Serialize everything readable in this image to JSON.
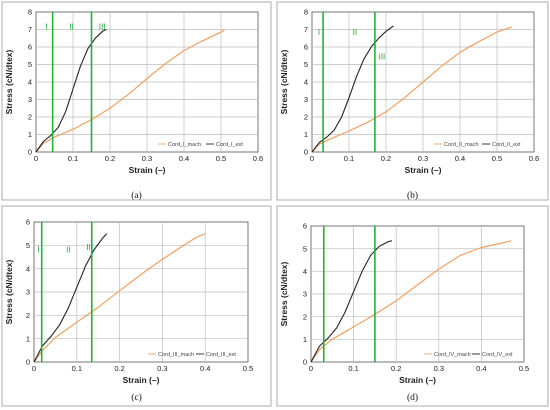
{
  "colors": {
    "mach": "#f0a060",
    "ext": "#222222",
    "boundary": "#22b03a",
    "grid": "#bdbdbd",
    "region_text": "#22aa33"
  },
  "chart_data": [
    {
      "type": "line",
      "panel_label": "(a)",
      "xlabel": "Strain (–)",
      "ylabel": "Stress (cN/dtex)",
      "xlim": [
        0,
        0.6
      ],
      "ylim": [
        0,
        8
      ],
      "x_ticks": [
        "0",
        "0.1",
        "0.2",
        "0.3",
        "0.4",
        "0.5",
        "0.6"
      ],
      "y_ticks": [
        "0",
        "1",
        "2",
        "3",
        "4",
        "5",
        "6",
        "7",
        "8"
      ],
      "grid": true,
      "legend_position": "bottom-right",
      "series": [
        {
          "name": "Cord_I_mach",
          "color_key": "mach",
          "x": [
            0,
            0.02,
            0.05,
            0.1,
            0.15,
            0.2,
            0.25,
            0.3,
            0.35,
            0.4,
            0.45,
            0.5,
            0.51
          ],
          "y": [
            0,
            0.5,
            0.85,
            1.3,
            1.85,
            2.5,
            3.3,
            4.2,
            5.05,
            5.8,
            6.35,
            6.85,
            7.0
          ]
        },
        {
          "name": "Cord_I_ext",
          "color_key": "ext",
          "x": [
            0,
            0.02,
            0.04,
            0.06,
            0.08,
            0.1,
            0.12,
            0.14,
            0.16,
            0.18,
            0.19
          ],
          "y": [
            0,
            0.6,
            0.95,
            1.4,
            2.3,
            3.6,
            4.9,
            5.9,
            6.5,
            6.9,
            7.0
          ]
        }
      ],
      "vlines": [
        0.045,
        0.15
      ],
      "regions": [
        {
          "label": "I",
          "x": 0.025,
          "y": 7.0
        },
        {
          "label": "II",
          "x": 0.09,
          "y": 7.0
        },
        {
          "label": "III",
          "x": 0.17,
          "y": 7.0
        }
      ]
    },
    {
      "type": "line",
      "panel_label": "(b)",
      "xlabel": "Strain (–)",
      "ylabel": "Stress (cN/dtex)",
      "xlim": [
        0,
        0.6
      ],
      "ylim": [
        0,
        8
      ],
      "x_ticks": [
        "0",
        "0.1",
        "0.2",
        "0.3",
        "0.4",
        "0.5",
        "0.6"
      ],
      "y_ticks": [
        "0",
        "1",
        "2",
        "3",
        "4",
        "5",
        "6",
        "7",
        "8"
      ],
      "grid": true,
      "legend_position": "bottom-right",
      "series": [
        {
          "name": "Cord_II_mach",
          "color_key": "mach",
          "x": [
            0,
            0.02,
            0.05,
            0.1,
            0.15,
            0.2,
            0.25,
            0.3,
            0.35,
            0.4,
            0.45,
            0.5,
            0.54
          ],
          "y": [
            0,
            0.45,
            0.75,
            1.2,
            1.7,
            2.3,
            3.1,
            4.0,
            4.9,
            5.7,
            6.3,
            6.85,
            7.15
          ]
        },
        {
          "name": "Cord_II_ext",
          "color_key": "ext",
          "x": [
            0,
            0.02,
            0.04,
            0.06,
            0.08,
            0.1,
            0.12,
            0.14,
            0.16,
            0.18,
            0.2,
            0.22
          ],
          "y": [
            0,
            0.55,
            0.85,
            1.25,
            2.0,
            3.1,
            4.3,
            5.3,
            6.0,
            6.5,
            6.9,
            7.2
          ]
        }
      ],
      "vlines": [
        0.03,
        0.17
      ],
      "regions": [
        {
          "label": "I",
          "x": 0.016,
          "y": 6.7
        },
        {
          "label": "II",
          "x": 0.11,
          "y": 6.7
        },
        {
          "label": "III",
          "x": 0.18,
          "y": 5.3
        }
      ]
    },
    {
      "type": "line",
      "panel_label": "(c)",
      "xlabel": "Strain (–)",
      "ylabel": "Stress (cN/dtex)",
      "xlim": [
        0,
        0.5
      ],
      "ylim": [
        0,
        6
      ],
      "x_ticks": [
        "0",
        "0.1",
        "0.2",
        "0.3",
        "0.4",
        "0.5"
      ],
      "y_ticks": [
        "0",
        "1",
        "2",
        "3",
        "4",
        "5",
        "6"
      ],
      "grid": true,
      "legend_position": "bottom-right",
      "series": [
        {
          "name": "Cord_III_mach",
          "color_key": "mach",
          "x": [
            0,
            0.02,
            0.05,
            0.1,
            0.15,
            0.2,
            0.25,
            0.3,
            0.35,
            0.38,
            0.4
          ],
          "y": [
            0,
            0.5,
            1.05,
            1.7,
            2.35,
            3.05,
            3.75,
            4.4,
            5.0,
            5.35,
            5.5
          ]
        },
        {
          "name": "Cord_III_ext",
          "color_key": "ext",
          "x": [
            0,
            0.02,
            0.04,
            0.06,
            0.08,
            0.1,
            0.12,
            0.14,
            0.16,
            0.17
          ],
          "y": [
            0,
            0.7,
            1.1,
            1.6,
            2.3,
            3.2,
            4.1,
            4.8,
            5.3,
            5.5
          ]
        }
      ],
      "vlines": [
        0.018,
        0.135
      ],
      "regions": [
        {
          "label": "I",
          "x": 0.008,
          "y": 4.7
        },
        {
          "label": "II",
          "x": 0.075,
          "y": 4.7
        },
        {
          "label": "III",
          "x": 0.122,
          "y": 4.8
        }
      ]
    },
    {
      "type": "line",
      "panel_label": "(d)",
      "xlabel": "Strain (–)",
      "ylabel": "Stress (cN/dtex)",
      "xlim": [
        0,
        0.5
      ],
      "ylim": [
        0,
        6
      ],
      "x_ticks": [
        "0",
        "0.1",
        "0.2",
        "0.3",
        "0.4",
        "0.5"
      ],
      "y_ticks": [
        "0",
        "1",
        "2",
        "3",
        "4",
        "5",
        "6"
      ],
      "grid": true,
      "legend_position": "bottom-right",
      "series": [
        {
          "name": "Cord_IV_mach",
          "color_key": "mach",
          "x": [
            0,
            0.02,
            0.05,
            0.1,
            0.15,
            0.2,
            0.25,
            0.3,
            0.35,
            0.4,
            0.45,
            0.47
          ],
          "y": [
            0,
            0.55,
            1.0,
            1.55,
            2.1,
            2.7,
            3.4,
            4.1,
            4.7,
            5.05,
            5.25,
            5.35
          ]
        },
        {
          "name": "Cord_IV_ext",
          "color_key": "ext",
          "x": [
            0,
            0.02,
            0.04,
            0.06,
            0.08,
            0.1,
            0.12,
            0.14,
            0.16,
            0.18,
            0.19
          ],
          "y": [
            0,
            0.7,
            1.05,
            1.5,
            2.2,
            3.1,
            4.0,
            4.7,
            5.1,
            5.3,
            5.35
          ]
        }
      ],
      "vlines": [
        0.03,
        0.15
      ],
      "regions": []
    }
  ]
}
